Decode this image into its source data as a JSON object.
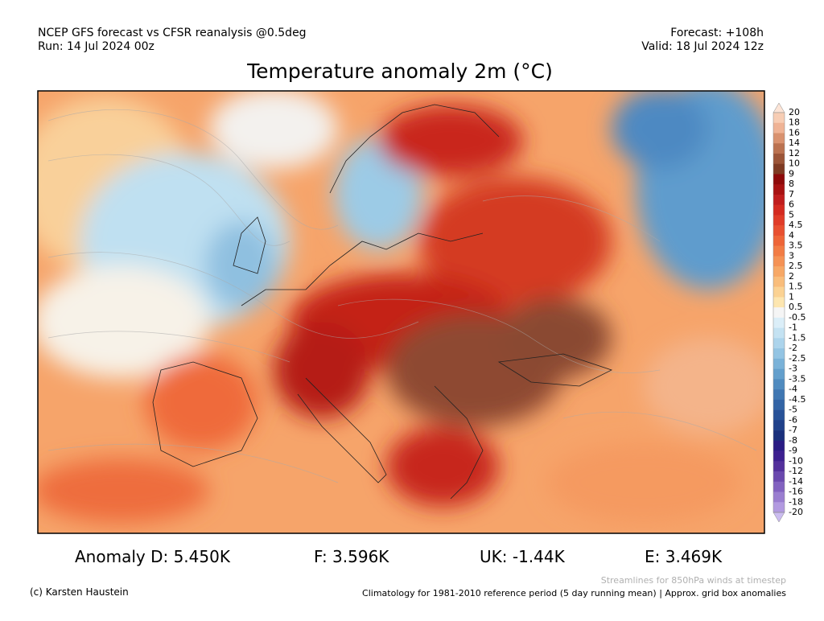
{
  "header": {
    "line1_left": "NCEP GFS forecast vs CFSR reanalysis @0.5deg",
    "line2_left": "Run: 14 Jul 2024 00z",
    "line1_right": "Forecast: +108h",
    "line2_right": "Valid: 18 Jul 2024 12z"
  },
  "title": "Temperature anomaly 2m (°C)",
  "colorbar": {
    "labels": [
      20,
      18,
      16,
      14,
      12,
      10,
      9,
      8,
      7,
      6,
      5,
      4.5,
      4,
      3.5,
      3,
      2.5,
      2,
      1.5,
      1,
      0.5,
      -0.5,
      -1,
      -1.5,
      -2,
      -2.5,
      -3,
      -3.5,
      -4,
      -4.5,
      -5,
      -6,
      -7,
      -8,
      -9,
      -10,
      -12,
      -14,
      -16,
      -18,
      -20
    ],
    "colors": [
      "#fce4d6",
      "#f7cdb4",
      "#efb395",
      "#d9926f",
      "#bb7250",
      "#9c5538",
      "#7f3b23",
      "#8e0a0a",
      "#a81212",
      "#c01d1d",
      "#d42a20",
      "#e03c28",
      "#e85030",
      "#ee6538",
      "#f27c45",
      "#f59255",
      "#f7a866",
      "#f9bd7b",
      "#fbd293",
      "#fde6b0",
      "#f5f5f5",
      "#dbeef8",
      "#c4e2f2",
      "#acd4ec",
      "#93c4e3",
      "#7ab2d8",
      "#639fcc",
      "#508bbf",
      "#4077b2",
      "#3364a5",
      "#285298",
      "#20418a",
      "#1a307c",
      "#2a1c84",
      "#3d2090",
      "#53309c",
      "#6a48ae",
      "#8262c0",
      "#9a7ed0",
      "#b29ae0",
      "#cbbcf0"
    ]
  },
  "stats": [
    "Anomaly D: 5.450K",
    "F: 3.596K",
    "UK: -1.44K",
    "E: 3.469K"
  ],
  "footer": {
    "streamlines": "Streamlines for 850hPa winds at timestep",
    "credit": "(c) Karsten Haustein",
    "climatology": "Climatology for 1981-2010 reference period (5 day running mean) | Approx. grid box anomalies"
  }
}
